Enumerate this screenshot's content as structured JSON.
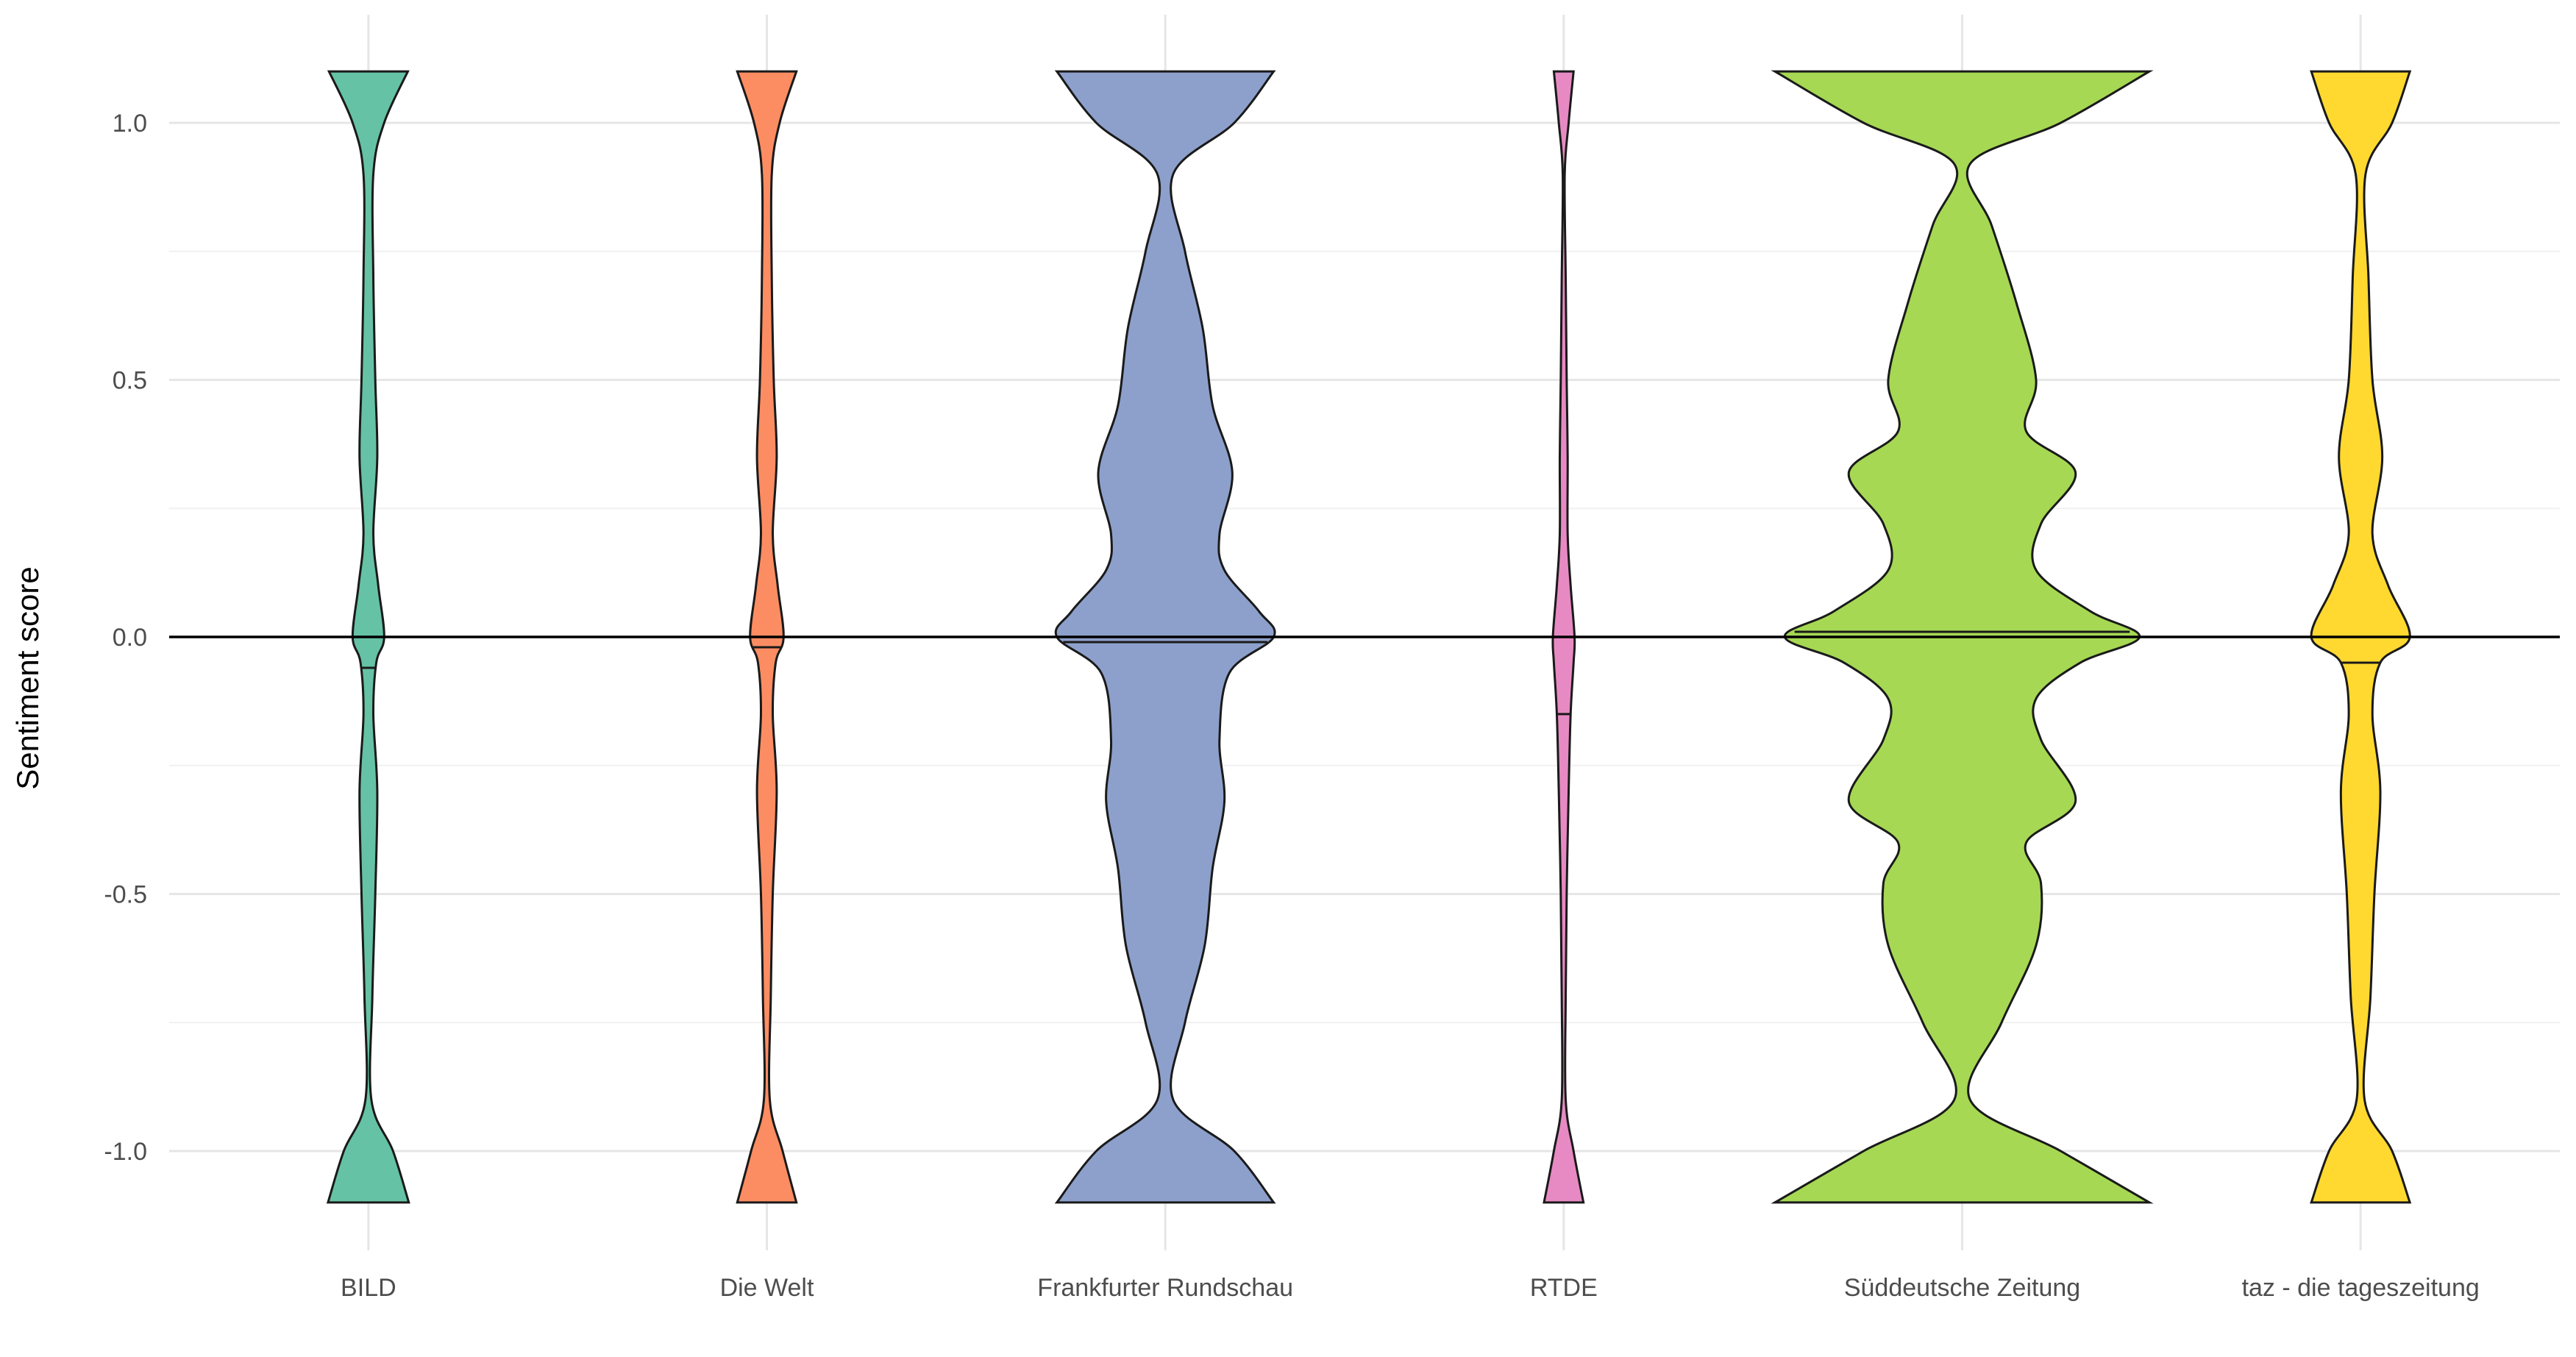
{
  "chart_data": {
    "type": "violin",
    "title": "",
    "xlabel": "",
    "ylabel": "Sentiment score",
    "ylim": [
      -1.2,
      1.2
    ],
    "yticks": [
      1.0,
      0.5,
      0.0,
      -0.5,
      -1.0
    ],
    "ytick_labels": [
      "1.0",
      "0.5",
      "0.0",
      "-0.5",
      "-1.0"
    ],
    "reference_line_y": 0.0,
    "grid": true,
    "legend": "none",
    "categories": [
      "BILD",
      "Die Welt",
      "Frankfurter Rundschau",
      "RTDE",
      "Süddeutsche Zeitung",
      "taz - die tageszeitung"
    ],
    "series": [
      {
        "category": "BILD",
        "color": "#66c2a5",
        "median": -0.06,
        "range": [
          -1.1,
          1.1
        ],
        "density": [
          [
            -1.1,
            0.41
          ],
          [
            -1.0,
            0.25
          ],
          [
            -0.9,
            0.03
          ],
          [
            -0.7,
            0.04
          ],
          [
            -0.5,
            0.07
          ],
          [
            -0.3,
            0.09
          ],
          [
            -0.15,
            0.05
          ],
          [
            -0.05,
            0.08
          ],
          [
            0.0,
            0.16
          ],
          [
            0.1,
            0.1
          ],
          [
            0.2,
            0.05
          ],
          [
            0.35,
            0.09
          ],
          [
            0.5,
            0.07
          ],
          [
            0.7,
            0.05
          ],
          [
            0.9,
            0.05
          ],
          [
            1.0,
            0.16
          ],
          [
            1.1,
            0.4
          ]
        ]
      },
      {
        "category": "Die Welt",
        "color": "#fc8d62",
        "median": -0.02,
        "range": [
          -1.1,
          1.1
        ],
        "density": [
          [
            -1.1,
            0.3
          ],
          [
            -1.0,
            0.16
          ],
          [
            -0.9,
            0.03
          ],
          [
            -0.7,
            0.04
          ],
          [
            -0.5,
            0.06
          ],
          [
            -0.3,
            0.1
          ],
          [
            -0.15,
            0.06
          ],
          [
            -0.05,
            0.09
          ],
          [
            0.0,
            0.17
          ],
          [
            0.1,
            0.11
          ],
          [
            0.2,
            0.06
          ],
          [
            0.35,
            0.1
          ],
          [
            0.5,
            0.07
          ],
          [
            0.7,
            0.05
          ],
          [
            0.9,
            0.05
          ],
          [
            1.0,
            0.13
          ],
          [
            1.1,
            0.3
          ]
        ]
      },
      {
        "category": "Frankfurter Rundschau",
        "color": "#8da0cb",
        "median": -0.01,
        "range": [
          -1.1,
          1.1
        ],
        "density": [
          [
            -1.1,
            1.1
          ],
          [
            -1.0,
            0.7
          ],
          [
            -0.9,
            0.08
          ],
          [
            -0.75,
            0.2
          ],
          [
            -0.6,
            0.4
          ],
          [
            -0.45,
            0.48
          ],
          [
            -0.32,
            0.6
          ],
          [
            -0.2,
            0.55
          ],
          [
            -0.07,
            0.65
          ],
          [
            0.0,
            1.1
          ],
          [
            0.05,
            0.95
          ],
          [
            0.13,
            0.6
          ],
          [
            0.2,
            0.55
          ],
          [
            0.32,
            0.68
          ],
          [
            0.45,
            0.48
          ],
          [
            0.6,
            0.38
          ],
          [
            0.75,
            0.2
          ],
          [
            0.9,
            0.08
          ],
          [
            1.0,
            0.7
          ],
          [
            1.1,
            1.1
          ]
        ]
      },
      {
        "category": "RTDE",
        "color": "#e78ac3",
        "median": -0.15,
        "range": [
          -1.1,
          1.1
        ],
        "density": [
          [
            -1.1,
            0.2
          ],
          [
            -1.0,
            0.1
          ],
          [
            -0.9,
            0.02
          ],
          [
            -0.7,
            0.02
          ],
          [
            -0.5,
            0.03
          ],
          [
            -0.3,
            0.05
          ],
          [
            -0.15,
            0.07
          ],
          [
            -0.05,
            0.1
          ],
          [
            0.0,
            0.11
          ],
          [
            0.1,
            0.07
          ],
          [
            0.2,
            0.04
          ],
          [
            0.35,
            0.04
          ],
          [
            0.5,
            0.03
          ],
          [
            0.7,
            0.02
          ],
          [
            0.9,
            0.01
          ],
          [
            1.0,
            0.05
          ],
          [
            1.1,
            0.1
          ]
        ]
      },
      {
        "category": "Süddeutsche Zeitung",
        "color": "#a6d854",
        "median": 0.01,
        "range": [
          -1.1,
          1.1
        ],
        "density": [
          [
            -1.1,
            1.9
          ],
          [
            -1.0,
            1.0
          ],
          [
            -0.9,
            0.08
          ],
          [
            -0.75,
            0.4
          ],
          [
            -0.6,
            0.75
          ],
          [
            -0.48,
            0.8
          ],
          [
            -0.4,
            0.65
          ],
          [
            -0.32,
            1.15
          ],
          [
            -0.2,
            0.8
          ],
          [
            -0.12,
            0.75
          ],
          [
            -0.05,
            1.2
          ],
          [
            0.0,
            1.8
          ],
          [
            0.05,
            1.3
          ],
          [
            0.13,
            0.75
          ],
          [
            0.22,
            0.8
          ],
          [
            0.32,
            1.15
          ],
          [
            0.4,
            0.65
          ],
          [
            0.5,
            0.75
          ],
          [
            0.65,
            0.55
          ],
          [
            0.8,
            0.3
          ],
          [
            0.92,
            0.08
          ],
          [
            1.0,
            1.0
          ],
          [
            1.1,
            1.9
          ]
        ]
      },
      {
        "category": "taz - die tageszeitung",
        "color": "#ffd92f",
        "median": -0.05,
        "range": [
          -1.1,
          1.1
        ],
        "density": [
          [
            -1.1,
            0.5
          ],
          [
            -1.0,
            0.32
          ],
          [
            -0.9,
            0.04
          ],
          [
            -0.7,
            0.1
          ],
          [
            -0.5,
            0.14
          ],
          [
            -0.3,
            0.2
          ],
          [
            -0.15,
            0.12
          ],
          [
            -0.05,
            0.2
          ],
          [
            0.0,
            0.5
          ],
          [
            0.1,
            0.28
          ],
          [
            0.2,
            0.12
          ],
          [
            0.35,
            0.22
          ],
          [
            0.5,
            0.12
          ],
          [
            0.7,
            0.08
          ],
          [
            0.9,
            0.05
          ],
          [
            1.0,
            0.32
          ],
          [
            1.1,
            0.5
          ]
        ]
      }
    ]
  }
}
